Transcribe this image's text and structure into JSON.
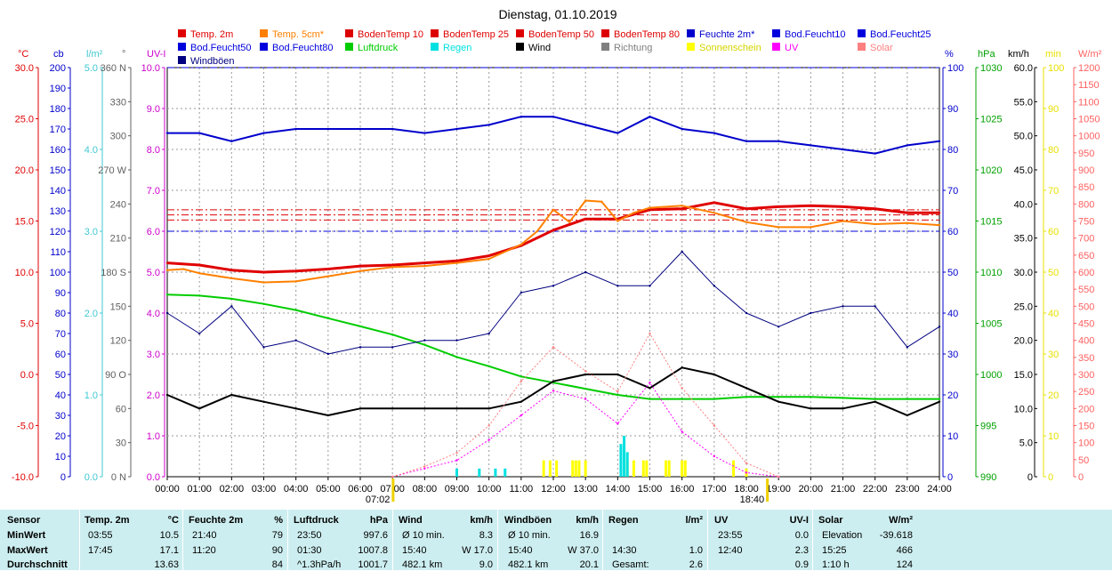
{
  "title": "Dienstag, 01.10.2019",
  "legend": [
    {
      "label": "Temp. 2m",
      "color": "#e00000"
    },
    {
      "label": "Temp. 5cm*",
      "color": "#ff8000"
    },
    {
      "label": "BodenTemp 10",
      "color": "#dd0000"
    },
    {
      "label": "BodenTemp 25",
      "color": "#dd0000"
    },
    {
      "label": "BodenTemp 50",
      "color": "#dd0000"
    },
    {
      "label": "BodenTemp 80",
      "color": "#dd0000"
    },
    {
      "label": "Feuchte 2m*",
      "color": "#0000cc"
    },
    {
      "label": "Bod.Feucht10",
      "color": "#0000dd"
    },
    {
      "label": "Bod.Feucht25",
      "color": "#0000dd"
    },
    {
      "label": "Bod.Feucht50",
      "color": "#0000dd"
    },
    {
      "label": "Bod.Feucht80",
      "color": "#0000dd"
    },
    {
      "label": "Luftdruck",
      "color": "#00cc00"
    },
    {
      "label": "Regen",
      "color": "#00e0e0"
    },
    {
      "label": "Wind",
      "color": "#000000"
    },
    {
      "label": "Richtung",
      "color": "#808080"
    },
    {
      "label": "Sonnenschein",
      "color": "#ffff00"
    },
    {
      "label": "UV",
      "color": "#ff00ff"
    },
    {
      "label": "Solar",
      "color": "#ff8080"
    },
    {
      "label": "Windböen",
      "color": "#000080"
    }
  ],
  "chart_data": {
    "type": "line",
    "title": "Dienstag, 01.10.2019",
    "x_ticks": [
      "00:00",
      "01:00",
      "02:00",
      "03:00",
      "04:00",
      "05:00",
      "06:00",
      "07:00",
      "08:00",
      "09:00",
      "10:00",
      "11:00",
      "12:00",
      "13:00",
      "14:00",
      "15:00",
      "16:00",
      "17:00",
      "18:00",
      "19:00",
      "20:00",
      "21:00",
      "22:00",
      "23:00",
      "24:00"
    ],
    "sunrise": "07:02",
    "sunset": "18:40",
    "axes": [
      {
        "id": "temp",
        "unit": "°C",
        "color": "#e00000",
        "min": -10,
        "max": 30,
        "ticks": [
          "30.0",
          "25.0",
          "20.0",
          "15.0",
          "10.0",
          "5.0",
          "0.0",
          "-5.0",
          "-10.0"
        ]
      },
      {
        "id": "cb",
        "unit": "cb",
        "color": "#0000cc",
        "min": 0,
        "max": 200,
        "ticks": [
          "200",
          "190",
          "180",
          "170",
          "160",
          "150",
          "140",
          "130",
          "120",
          "110",
          "100",
          "90",
          "80",
          "70",
          "60",
          "50",
          "40",
          "30",
          "20",
          "10",
          "0"
        ]
      },
      {
        "id": "rain",
        "unit": "l/m²",
        "color": "#00c0c0",
        "min": 0,
        "max": 5,
        "ticks": [
          "5.0",
          "4.0",
          "3.0",
          "2.0",
          "1.0",
          "0.0"
        ]
      },
      {
        "id": "dir",
        "unit": "°",
        "color": "#606060",
        "min": 0,
        "max": 360,
        "ticks": [
          "360 N",
          "330",
          "300",
          "270 W",
          "240",
          "210",
          "180 S",
          "150",
          "120",
          "90 O",
          "60",
          "30",
          "0 N"
        ]
      },
      {
        "id": "uvi",
        "unit": "UV-I",
        "color": "#cc00cc",
        "min": 0,
        "max": 10,
        "ticks": [
          "10.0",
          "9.0",
          "8.0",
          "7.0",
          "6.0",
          "5.0",
          "4.0",
          "3.0",
          "2.0",
          "1.0",
          "0.0"
        ]
      },
      {
        "id": "hum",
        "unit": "%",
        "color": "#0000cc",
        "min": 0,
        "max": 100,
        "ticks": [
          "100",
          "90",
          "80",
          "70",
          "60",
          "50",
          "40",
          "30",
          "20",
          "10",
          "0"
        ]
      },
      {
        "id": "press",
        "unit": "hPa",
        "color": "#00a000",
        "min": 990,
        "max": 1030,
        "ticks": [
          "1030",
          "1025",
          "1020",
          "1015",
          "1010",
          "1005",
          "1000",
          "995",
          "990"
        ]
      },
      {
        "id": "wind",
        "unit": "km/h",
        "color": "#000000",
        "min": 0,
        "max": 60,
        "ticks": [
          "60.0",
          "55.0",
          "50.0",
          "45.0",
          "40.0",
          "35.0",
          "30.0",
          "25.0",
          "20.0",
          "15.0",
          "10.0",
          "5.0",
          "0"
        ]
      },
      {
        "id": "sun",
        "unit": "min",
        "color": "#d0c000",
        "min": 0,
        "max": 100,
        "ticks": [
          "100",
          "90",
          "80",
          "70",
          "60",
          "50",
          "40",
          "30",
          "20",
          "10",
          "0"
        ]
      },
      {
        "id": "solar",
        "unit": "W/m²",
        "color": "#ff6060",
        "min": 0,
        "max": 1200,
        "ticks": [
          "1200",
          "1150",
          "1100",
          "1050",
          "1000",
          "950",
          "900",
          "850",
          "800",
          "750",
          "700",
          "650",
          "600",
          "550",
          "500",
          "450",
          "400",
          "350",
          "300",
          "250",
          "200",
          "150",
          "100",
          "50",
          "0"
        ]
      }
    ],
    "series": [
      {
        "name": "Temp. 2m",
        "axis": "temp",
        "color": "#e00000",
        "x": [
          0,
          1,
          2,
          3,
          4,
          5,
          6,
          7,
          8,
          9,
          10,
          11,
          12,
          13,
          14,
          15,
          16,
          17,
          18,
          19,
          20,
          21,
          22,
          23,
          24
        ],
        "y": [
          10.9,
          10.7,
          10.2,
          10.0,
          10.1,
          10.3,
          10.6,
          10.7,
          10.9,
          11.1,
          11.6,
          12.6,
          14.1,
          15.2,
          15.2,
          16.1,
          16.2,
          16.8,
          16.2,
          16.4,
          16.5,
          16.4,
          16.2,
          15.8,
          15.8
        ]
      },
      {
        "name": "Temp. 5cm*",
        "axis": "temp",
        "color": "#ff8000",
        "x": [
          0,
          0.5,
          1,
          2,
          3,
          4,
          5,
          6,
          7,
          8,
          9,
          10,
          11,
          11.5,
          12,
          12.5,
          13,
          13.5,
          14,
          14.5,
          15,
          16,
          17,
          18,
          19,
          20,
          21,
          22,
          23,
          24
        ],
        "y": [
          10.2,
          10.3,
          9.9,
          9.4,
          9.0,
          9.1,
          9.6,
          10.1,
          10.5,
          10.6,
          10.9,
          11.3,
          12.7,
          14.0,
          16.1,
          14.9,
          17.0,
          16.9,
          15.0,
          15.8,
          16.3,
          16.5,
          15.8,
          14.9,
          14.4,
          14.4,
          15.0,
          14.7,
          14.8,
          14.6
        ]
      },
      {
        "name": "Feuchte 2m*",
        "axis": "hum",
        "color": "#0000cc",
        "x": [
          0,
          1,
          2,
          3,
          4,
          5,
          6,
          7,
          8,
          9,
          10,
          11,
          12,
          13,
          14,
          15,
          16,
          17,
          18,
          19,
          20,
          21,
          22,
          23,
          24
        ],
        "y": [
          84,
          84,
          82,
          84,
          85,
          85,
          85,
          85,
          84,
          85,
          86,
          88,
          88,
          86,
          84,
          88,
          85,
          84,
          82,
          82,
          81,
          80,
          79,
          81,
          82
        ]
      },
      {
        "name": "Luftdruck",
        "axis": "press",
        "color": "#00cc00",
        "x": [
          0,
          1,
          2,
          3,
          4,
          5,
          6,
          7,
          8,
          9,
          10,
          11,
          12,
          13,
          14,
          15,
          16,
          17,
          18,
          19,
          20,
          21,
          22,
          23,
          24
        ],
        "y": [
          1007.8,
          1007.7,
          1007.4,
          1006.9,
          1006.3,
          1005.5,
          1004.7,
          1003.9,
          1002.9,
          1001.7,
          1000.8,
          999.8,
          999.2,
          998.6,
          998.0,
          997.6,
          997.6,
          997.6,
          997.8,
          997.8,
          997.8,
          997.7,
          997.6,
          997.6,
          997.6
        ]
      },
      {
        "name": "Wind",
        "axis": "wind",
        "color": "#000000",
        "x": [
          0,
          1,
          2,
          3,
          4,
          5,
          6,
          7,
          8,
          9,
          10,
          11,
          12,
          13,
          14,
          15,
          16,
          17,
          18,
          19,
          20,
          21,
          22,
          23,
          24
        ],
        "y": [
          12,
          10,
          12,
          11,
          10,
          9,
          10,
          10,
          10,
          10,
          10,
          11,
          14,
          15,
          15,
          13,
          16,
          15,
          13,
          11,
          10,
          10,
          11,
          9,
          11
        ]
      },
      {
        "name": "Windböen",
        "axis": "wind",
        "color": "#000080",
        "x": [
          0,
          1,
          2,
          3,
          4,
          5,
          6,
          7,
          8,
          9,
          10,
          11,
          12,
          13,
          14,
          15,
          16,
          17,
          18,
          19,
          20,
          21,
          22,
          23,
          24
        ],
        "y": [
          24,
          21,
          25,
          19,
          20,
          18,
          19,
          19,
          20,
          20,
          21,
          27,
          28,
          30,
          28,
          28,
          33,
          28,
          24,
          22,
          24,
          25,
          25,
          19,
          22
        ]
      },
      {
        "name": "UV",
        "axis": "uvi",
        "color": "#ff00ff",
        "x": [
          7,
          8,
          9,
          10,
          11,
          12,
          13,
          14,
          15,
          16,
          17,
          18,
          19
        ],
        "y": [
          0,
          0.2,
          0.4,
          0.9,
          1.5,
          2.1,
          1.9,
          1.3,
          2.3,
          1.1,
          0.5,
          0.1,
          0
        ]
      },
      {
        "name": "Solar",
        "axis": "solar",
        "color": "#ff8080",
        "x": [
          7,
          8,
          9,
          10,
          11,
          12,
          13,
          14,
          15,
          16,
          17,
          18,
          19
        ],
        "y": [
          0,
          30,
          70,
          150,
          280,
          380,
          310,
          250,
          420,
          260,
          150,
          40,
          0
        ]
      }
    ],
    "dashed_lines": [
      {
        "name": "BodenTemp 25",
        "axis": "temp",
        "color": "#dd0000",
        "y": 16.1
      },
      {
        "name": "BodenTemp 50",
        "axis": "temp",
        "color": "#dd0000",
        "y": 15.6
      },
      {
        "name": "BodenTemp 80",
        "axis": "temp",
        "color": "#dd0000",
        "y": 15.1
      },
      {
        "name": "Bod.Feucht10",
        "axis": "hum",
        "color": "#0000dd",
        "y": 100
      },
      {
        "name": "Bod.Feucht50",
        "axis": "hum",
        "color": "#0000dd",
        "y": 60
      }
    ],
    "rain_bars": {
      "axis": "rain",
      "color": "#00e0e0",
      "x": [
        9.0,
        9.7,
        10.2,
        10.5,
        14.1,
        14.2,
        14.3
      ],
      "y": [
        0.1,
        0.1,
        0.1,
        0.1,
        0.4,
        0.5,
        0.3
      ]
    },
    "sunshine_bars": {
      "axis": "sun",
      "color": "#ffff00",
      "x": [
        11.7,
        11.9,
        12.1,
        12.6,
        12.7,
        12.8,
        13.0,
        14.3,
        14.5,
        14.8,
        14.9,
        15.5,
        15.6,
        16.0,
        16.1,
        17.6,
        18.0
      ],
      "y": [
        4,
        4,
        4,
        4,
        4,
        4,
        4,
        4,
        4,
        4,
        4,
        4,
        4,
        4,
        4,
        4,
        2
      ]
    }
  },
  "stats": {
    "headers": [
      {
        "label": "Sensor",
        "unit": ""
      },
      {
        "label": "Temp. 2m",
        "unit": "°C"
      },
      {
        "label": "Feuchte 2m",
        "unit": "%"
      },
      {
        "label": "Luftdruck",
        "unit": "hPa"
      },
      {
        "label": "Wind",
        "unit": "km/h"
      },
      {
        "label": "Windböen",
        "unit": "km/h"
      },
      {
        "label": "Regen",
        "unit": "l/m²"
      },
      {
        "label": "UV",
        "unit": "UV-I"
      },
      {
        "label": "Solar",
        "unit": "W/m²"
      }
    ],
    "rows": [
      {
        "label": "MinWert",
        "cells": [
          [
            "03:55",
            "10.5"
          ],
          [
            "21:40",
            "79"
          ],
          [
            "23:50",
            "997.6"
          ],
          [
            "Ø 10 min.",
            "8.3"
          ],
          [
            "Ø 10 min.",
            "16.9"
          ],
          [
            "",
            ""
          ],
          [
            "23:55",
            "0.0"
          ],
          [
            "Elevation",
            "-39.618"
          ]
        ]
      },
      {
        "label": "MaxWert",
        "cells": [
          [
            "17:45",
            "17.1"
          ],
          [
            "11:20",
            "90"
          ],
          [
            "01:30",
            "1007.8"
          ],
          [
            "15:40",
            "W 17.0"
          ],
          [
            "15:40",
            "W 37.0"
          ],
          [
            "14:30",
            "1.0"
          ],
          [
            "12:40",
            "2.3"
          ],
          [
            "15:25",
            "466"
          ]
        ]
      },
      {
        "label": "Durchschnitt",
        "cells": [
          [
            "",
            "13.63"
          ],
          [
            "",
            "84"
          ],
          [
            "^1.3hPa/h",
            "1001.7"
          ],
          [
            "482.1 km",
            "9.0"
          ],
          [
            "482.1 km",
            "20.1"
          ],
          [
            "Gesamt:",
            "2.6"
          ],
          [
            "",
            "0.9"
          ],
          [
            "1:10 h",
            "124"
          ]
        ]
      }
    ]
  }
}
